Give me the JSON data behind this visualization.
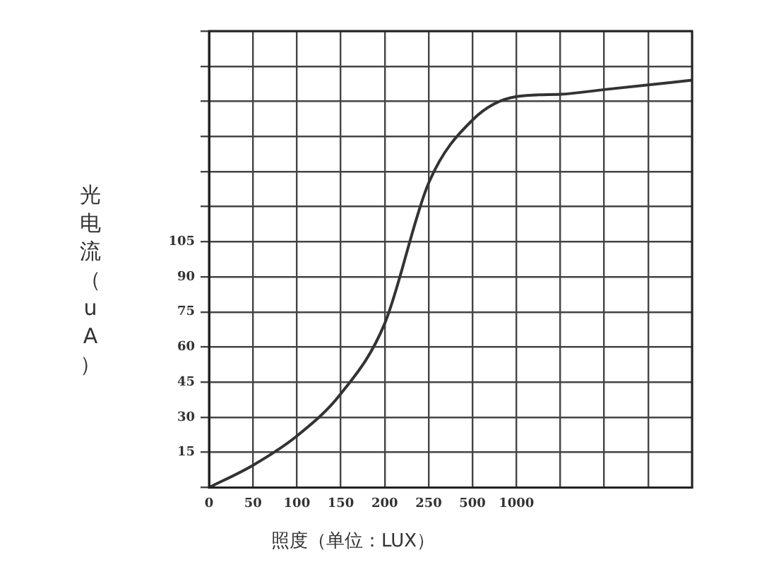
{
  "chart_data": {
    "type": "line",
    "xlabel": "照度（单位：LUX）",
    "ylabel": "光电流（uA）",
    "categories": [
      "0",
      "50",
      "100",
      "150",
      "200",
      "250",
      "500",
      "1000",
      null,
      null,
      null,
      null
    ],
    "series": [
      {
        "color": "#333333",
        "values": [
          0,
          9.5,
          22,
          40,
          70,
          130,
          157,
          167,
          168,
          170,
          172,
          174
        ]
      }
    ],
    "ylim": [
      0,
      195
    ],
    "yticks": [
      {
        "value": 0,
        "label": null
      },
      15,
      30,
      45,
      60,
      75,
      90,
      105,
      {
        "value": 120,
        "label": null
      },
      {
        "value": 135,
        "label": null
      },
      {
        "value": 150,
        "label": null
      },
      {
        "value": 165,
        "label": null
      },
      {
        "value": 180,
        "label": null
      },
      {
        "value": 195,
        "label": null
      }
    ],
    "grid": true,
    "legend": false,
    "marker": "none",
    "line_style": "solid"
  }
}
